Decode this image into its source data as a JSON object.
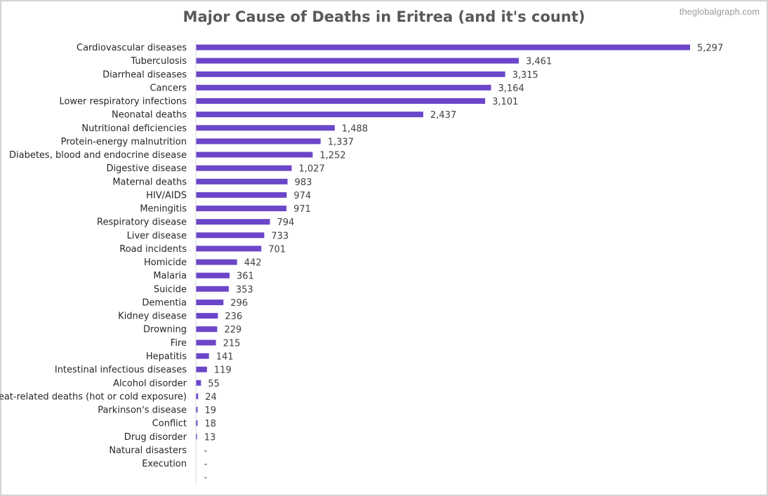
{
  "site": {
    "watermark": "theglobalgraph.com"
  },
  "colors": {
    "bar": "#6b46c9",
    "axis": "#d9d9d9"
  },
  "chart_data": {
    "type": "bar",
    "orientation": "horizontal",
    "title": "Major Cause of Deaths in Eritrea (and it's count)",
    "xlabel": "",
    "ylabel": "",
    "grid": false,
    "legend": "none",
    "xlim": [
      0,
      5297
    ],
    "categories": [
      "Cardiovascular diseases",
      "Tuberculosis",
      "Diarrheal diseases",
      "Cancers",
      "Lower respiratory infections",
      "Neonatal deaths",
      "Nutritional deficiencies",
      "Protein-energy malnutrition",
      "Diabetes, blood and endocrine disease",
      "Digestive disease",
      "Maternal deaths",
      "HIV/AIDS",
      "Meningitis",
      "Respiratory disease",
      "Liver disease",
      "Road incidents",
      "Homicide",
      "Malaria",
      "Suicide",
      "Dementia",
      "Kidney disease",
      "Drowning",
      "Fire",
      "Hepatitis",
      "Intestinal infectious diseases",
      "Alcohol disorder",
      "Heat-related deaths (hot or cold exposure)",
      "Parkinson's disease",
      "Conflict",
      "Drug disorder",
      "Natural disasters",
      "Execution",
      ""
    ],
    "values": [
      5297,
      3461,
      3315,
      3164,
      3101,
      2437,
      1488,
      1337,
      1252,
      1027,
      983,
      974,
      971,
      794,
      733,
      701,
      442,
      361,
      353,
      296,
      236,
      229,
      215,
      141,
      119,
      55,
      24,
      19,
      18,
      13,
      0,
      0,
      0
    ],
    "data_labels": [
      "5,297",
      "3,461",
      "3,315",
      "3,164",
      "3,101",
      "2,437",
      "1,488",
      "1,337",
      "1,252",
      "1,027",
      "983",
      "974",
      "971",
      "794",
      "733",
      "701",
      "442",
      "361",
      "353",
      "296",
      "236",
      "229",
      "215",
      "141",
      "119",
      "55",
      "24",
      "19",
      "18",
      "13",
      "-",
      "-",
      "-"
    ]
  }
}
